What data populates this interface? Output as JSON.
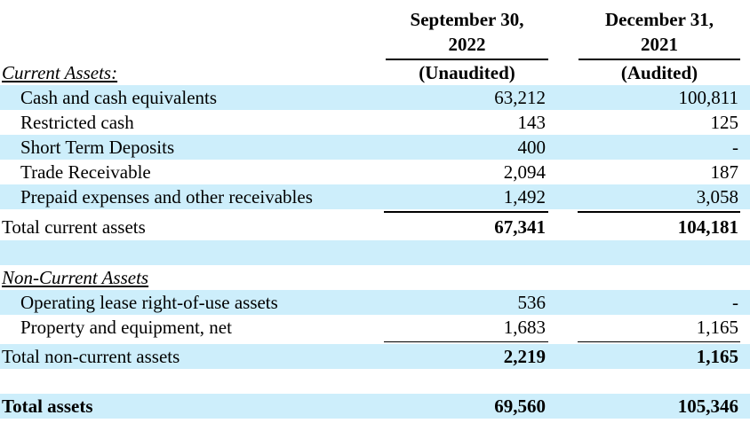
{
  "columns": {
    "col1": {
      "date_line1": "September 30,",
      "date_line2": "2022",
      "status": "(Unaudited)"
    },
    "col2": {
      "date_line1": "December 31,",
      "date_line2": "2021",
      "status": "(Audited)"
    }
  },
  "sections": {
    "current_assets_title": "Current Assets:",
    "non_current_assets_title": "Non-Current Assets"
  },
  "rows": {
    "cash": {
      "label": "Cash and cash equivalents",
      "v1": "63,212",
      "v2": "100,811"
    },
    "restricted_cash": {
      "label": "Restricted cash",
      "v1": "143",
      "v2": "125"
    },
    "short_term_deposits": {
      "label": "Short Term Deposits",
      "v1": "400",
      "v2": "-"
    },
    "trade_receivable": {
      "label": "Trade Receivable",
      "v1": "2,094",
      "v2": "187"
    },
    "prepaid": {
      "label": "Prepaid expenses and other receivables",
      "v1": "1,492",
      "v2": "3,058"
    },
    "total_current": {
      "label": "Total current assets",
      "v1": "67,341",
      "v2": "104,181"
    },
    "operating_lease": {
      "label": "Operating lease right-of-use assets",
      "v1": "536",
      "v2": "-"
    },
    "property": {
      "label": "Property and equipment, net",
      "v1": "1,683",
      "v2": "1,165"
    },
    "total_non_current": {
      "label": "Total non-current assets",
      "v1": "2,219",
      "v2": "1,165"
    },
    "total_assets": {
      "label": "Total assets",
      "v1": "69,560",
      "v2": "105,346"
    }
  },
  "colors": {
    "row_shade": "#cdeefb",
    "text": "#000000",
    "rule": "#000000"
  }
}
